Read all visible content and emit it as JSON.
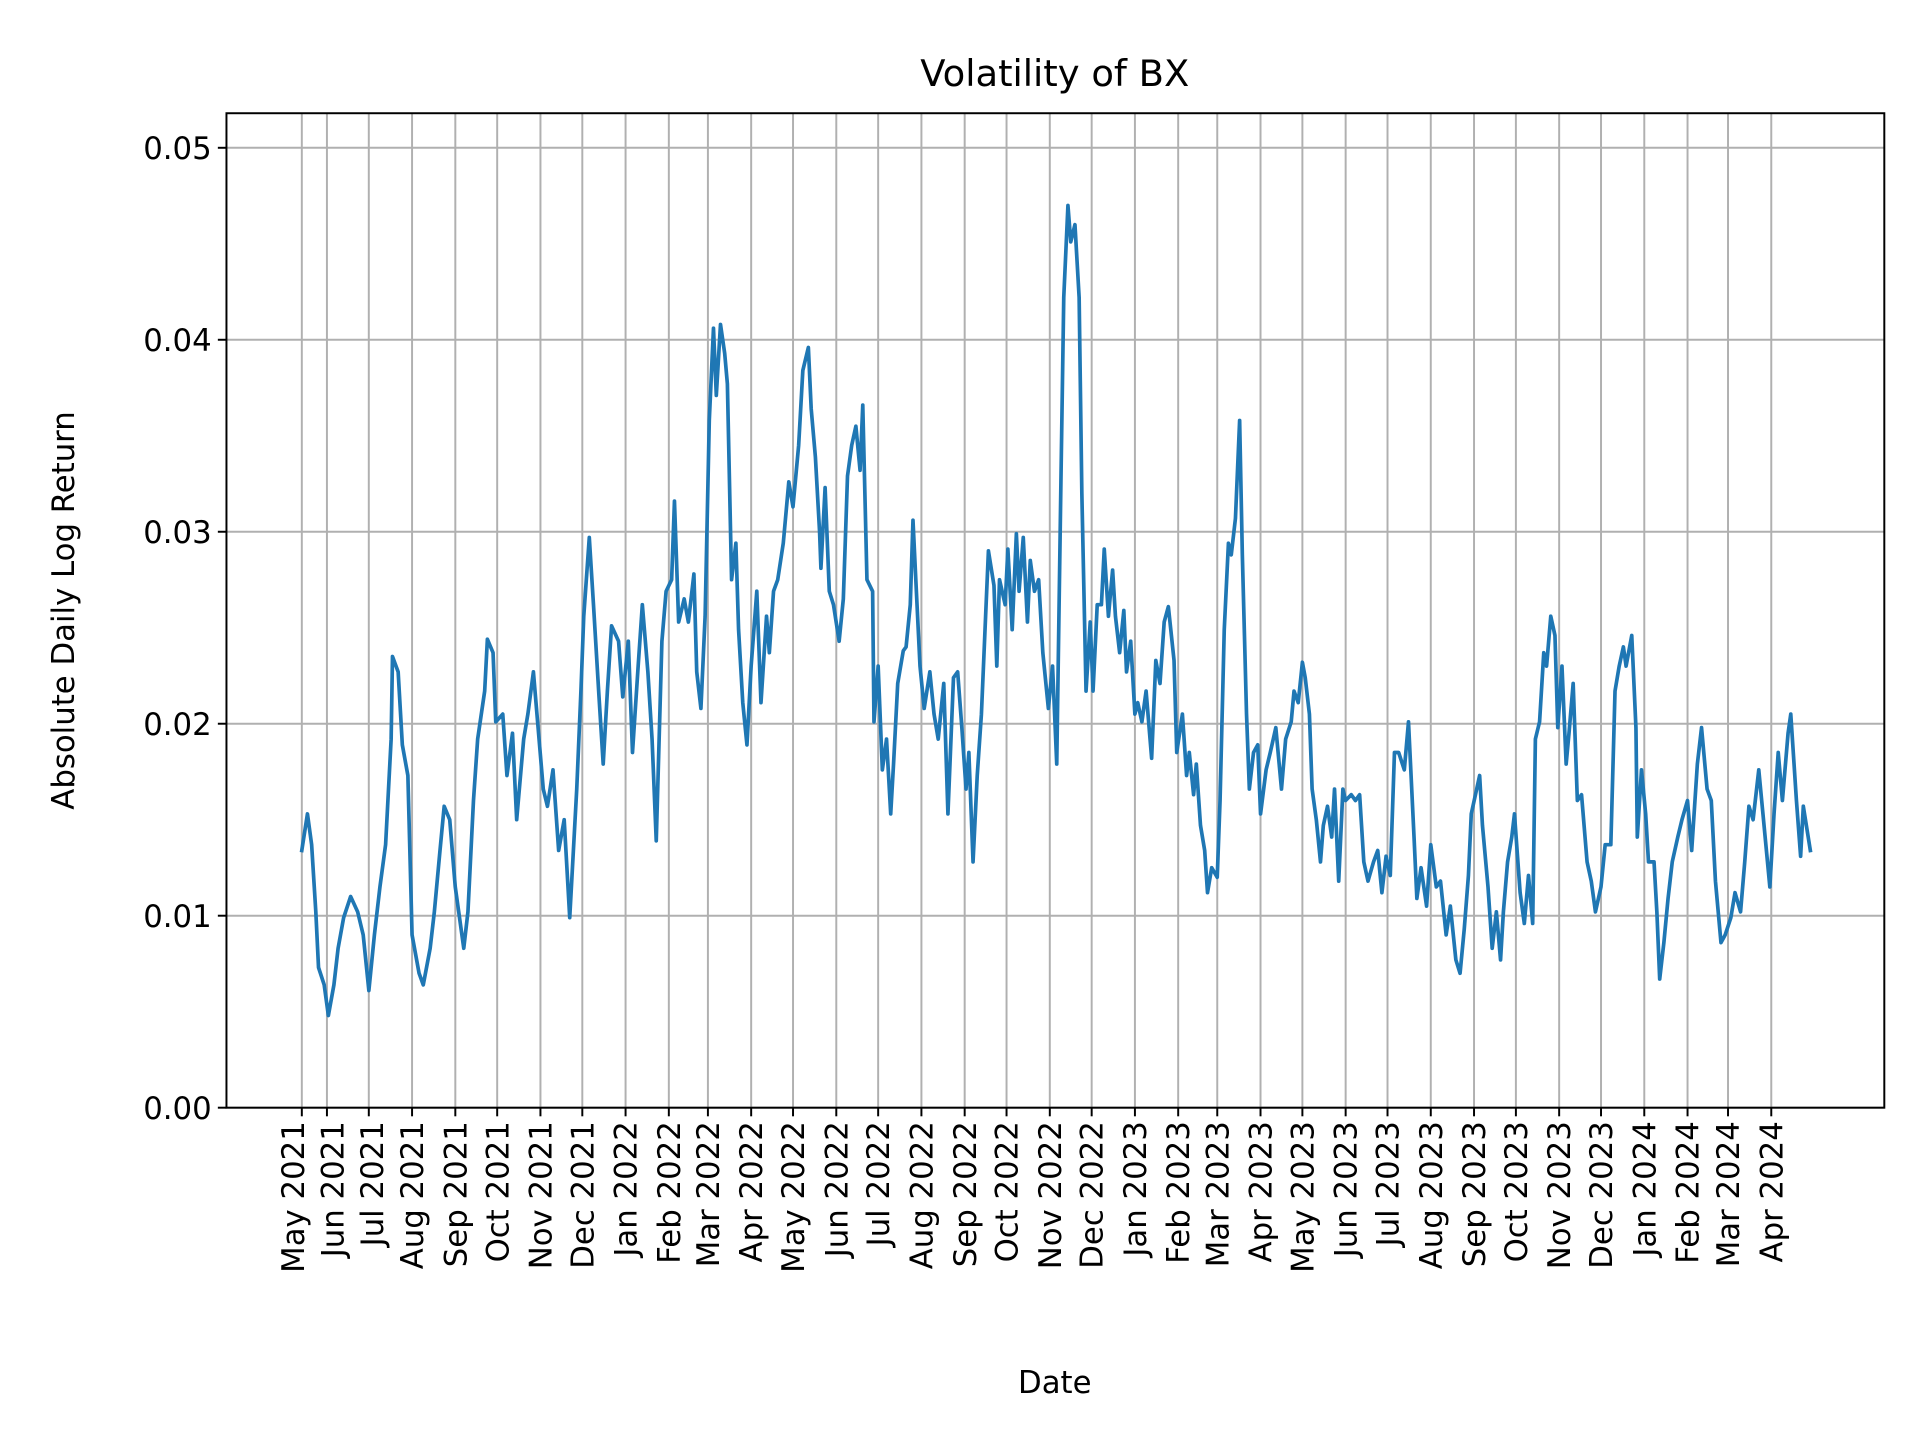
{
  "chart_data": {
    "type": "line",
    "title": "Volatility of BX",
    "xlabel": "Date",
    "ylabel": "Absolute Daily Log Return",
    "ylim": [
      0,
      0.0518
    ],
    "xlim": [
      "2021-03-21",
      "2024-06-21"
    ],
    "grid": true,
    "line_color": "#1f77b4",
    "grid_color": "#b0b0b0",
    "yticks": [
      {
        "value": 0.0,
        "label": "0.00"
      },
      {
        "value": 0.01,
        "label": "0.01"
      },
      {
        "value": 0.02,
        "label": "0.02"
      },
      {
        "value": 0.03,
        "label": "0.03"
      },
      {
        "value": 0.04,
        "label": "0.04"
      },
      {
        "value": 0.05,
        "label": "0.05"
      }
    ],
    "xticks": [
      {
        "date": "2021-05-14",
        "label": "May 2021"
      },
      {
        "date": "2021-06-01",
        "label": "Jun 2021"
      },
      {
        "date": "2021-07-01",
        "label": "Jul 2021"
      },
      {
        "date": "2021-08-01",
        "label": "Aug 2021"
      },
      {
        "date": "2021-09-01",
        "label": "Sep 2021"
      },
      {
        "date": "2021-10-01",
        "label": "Oct 2021"
      },
      {
        "date": "2021-11-01",
        "label": "Nov 2021"
      },
      {
        "date": "2021-12-01",
        "label": "Dec 2021"
      },
      {
        "date": "2022-01-01",
        "label": "Jan 2022"
      },
      {
        "date": "2022-02-01",
        "label": "Feb 2022"
      },
      {
        "date": "2022-03-01",
        "label": "Mar 2022"
      },
      {
        "date": "2022-04-01",
        "label": "Apr 2022"
      },
      {
        "date": "2022-05-01",
        "label": "May 2022"
      },
      {
        "date": "2022-06-01",
        "label": "Jun 2022"
      },
      {
        "date": "2022-07-01",
        "label": "Jul 2022"
      },
      {
        "date": "2022-08-01",
        "label": "Aug 2022"
      },
      {
        "date": "2022-09-01",
        "label": "Sep 2022"
      },
      {
        "date": "2022-10-01",
        "label": "Oct 2022"
      },
      {
        "date": "2022-11-01",
        "label": "Nov 2022"
      },
      {
        "date": "2022-12-01",
        "label": "Dec 2022"
      },
      {
        "date": "2023-01-01",
        "label": "Jan 2023"
      },
      {
        "date": "2023-02-01",
        "label": "Feb 2023"
      },
      {
        "date": "2023-03-01",
        "label": "Mar 2023"
      },
      {
        "date": "2023-04-01",
        "label": "Apr 2023"
      },
      {
        "date": "2023-05-01",
        "label": "May 2023"
      },
      {
        "date": "2023-06-01",
        "label": "Jun 2023"
      },
      {
        "date": "2023-07-01",
        "label": "Jul 2023"
      },
      {
        "date": "2023-08-01",
        "label": "Aug 2023"
      },
      {
        "date": "2023-09-01",
        "label": "Sep 2023"
      },
      {
        "date": "2023-10-01",
        "label": "Oct 2023"
      },
      {
        "date": "2023-11-01",
        "label": "Nov 2023"
      },
      {
        "date": "2023-12-01",
        "label": "Dec 2023"
      },
      {
        "date": "2024-01-01",
        "label": "Jan 2024"
      },
      {
        "date": "2024-02-01",
        "label": "Feb 2024"
      },
      {
        "date": "2024-03-01",
        "label": "Mar 2024"
      },
      {
        "date": "2024-04-01",
        "label": "Apr 2024"
      }
    ],
    "series": [
      {
        "x": [
          "2021-05-14",
          "2021-05-18",
          "2021-05-21",
          "2021-05-24",
          "2021-05-26",
          "2021-05-30",
          "2021-06-02",
          "2021-06-06",
          "2021-06-09",
          "2021-06-13",
          "2021-06-18",
          "2021-06-23",
          "2021-06-27",
          "2021-07-01",
          "2021-07-05",
          "2021-07-09",
          "2021-07-13",
          "2021-07-17",
          "2021-07-18",
          "2021-07-22",
          "2021-07-25",
          "2021-07-29",
          "2021-08-01",
          "2021-08-06",
          "2021-08-09",
          "2021-08-14",
          "2021-08-17",
          "2021-08-21",
          "2021-08-24",
          "2021-08-28",
          "2021-09-01",
          "2021-09-07",
          "2021-09-10",
          "2021-09-14",
          "2021-09-17",
          "2021-09-22",
          "2021-09-24",
          "2021-09-28",
          "2021-09-30",
          "2021-10-05",
          "2021-10-08",
          "2021-10-12",
          "2021-10-15",
          "2021-10-20",
          "2021-10-23",
          "2021-10-27",
          "2021-10-30",
          "2021-11-03",
          "2021-11-06",
          "2021-11-10",
          "2021-11-14",
          "2021-11-18",
          "2021-11-22",
          "2021-11-27",
          "2021-11-30",
          "2021-12-02",
          "2021-12-06",
          "2021-12-09",
          "2021-12-13",
          "2021-12-16",
          "2021-12-19",
          "2021-12-22",
          "2021-12-27",
          "2021-12-30",
          "2022-01-03",
          "2022-01-06",
          "2022-01-10",
          "2022-01-13",
          "2022-01-17",
          "2022-01-20",
          "2022-01-23",
          "2022-01-27",
          "2022-01-30",
          "2022-02-03",
          "2022-02-05",
          "2022-02-08",
          "2022-02-12",
          "2022-02-15",
          "2022-02-19",
          "2022-02-21",
          "2022-02-24",
          "2022-02-27",
          "2022-03-02",
          "2022-03-05",
          "2022-03-07",
          "2022-03-10",
          "2022-03-13",
          "2022-03-15",
          "2022-03-18",
          "2022-03-21",
          "2022-03-23",
          "2022-03-26",
          "2022-03-29",
          "2022-04-01",
          "2022-04-05",
          "2022-04-08",
          "2022-04-12",
          "2022-04-14",
          "2022-04-17",
          "2022-04-20",
          "2022-04-24",
          "2022-04-28",
          "2022-05-01",
          "2022-05-05",
          "2022-05-08",
          "2022-05-12",
          "2022-05-14",
          "2022-05-17",
          "2022-05-20",
          "2022-05-21",
          "2022-05-24",
          "2022-05-27",
          "2022-05-30",
          "2022-06-03",
          "2022-06-06",
          "2022-06-09",
          "2022-06-12",
          "2022-06-15",
          "2022-06-18",
          "2022-06-20",
          "2022-06-23",
          "2022-06-27",
          "2022-06-28",
          "2022-07-01",
          "2022-07-04",
          "2022-07-07",
          "2022-07-10",
          "2022-07-12",
          "2022-07-15",
          "2022-07-19",
          "2022-07-21",
          "2022-07-24",
          "2022-07-26",
          "2022-07-28",
          "2022-07-31",
          "2022-08-03",
          "2022-08-07",
          "2022-08-10",
          "2022-08-13",
          "2022-08-17",
          "2022-08-20",
          "2022-08-24",
          "2022-08-27",
          "2022-08-30",
          "2022-09-02",
          "2022-09-04",
          "2022-09-07",
          "2022-09-10",
          "2022-09-13",
          "2022-09-16",
          "2022-09-18",
          "2022-09-22",
          "2022-09-24",
          "2022-09-26",
          "2022-09-30",
          "2022-10-02",
          "2022-10-05",
          "2022-10-08",
          "2022-10-10",
          "2022-10-13",
          "2022-10-16",
          "2022-10-18",
          "2022-10-21",
          "2022-10-24",
          "2022-10-27",
          "2022-10-31",
          "2022-11-03",
          "2022-11-06",
          "2022-11-09",
          "2022-11-11",
          "2022-11-14",
          "2022-11-16",
          "2022-11-19",
          "2022-11-22",
          "2022-11-24",
          "2022-11-27",
          "2022-11-30",
          "2022-12-02",
          "2022-12-05",
          "2022-12-08",
          "2022-12-10",
          "2022-12-13",
          "2022-12-16",
          "2022-12-18",
          "2022-12-21",
          "2022-12-24",
          "2022-12-26",
          "2022-12-29",
          "2023-01-01",
          "2023-01-03",
          "2023-01-06",
          "2023-01-09",
          "2023-01-13",
          "2023-01-16",
          "2023-01-19",
          "2023-01-22",
          "2023-01-25",
          "2023-01-29",
          "2023-01-31",
          "2023-02-04",
          "2023-02-07",
          "2023-02-09",
          "2023-02-12",
          "2023-02-14",
          "2023-02-17",
          "2023-02-20",
          "2023-02-22",
          "2023-02-25",
          "2023-03-01",
          "2023-03-03",
          "2023-03-06",
          "2023-03-09",
          "2023-03-11",
          "2023-03-14",
          "2023-03-17",
          "2023-03-19",
          "2023-03-22",
          "2023-03-24",
          "2023-03-27",
          "2023-03-30",
          "2023-04-01",
          "2023-04-05",
          "2023-04-08",
          "2023-04-12",
          "2023-04-16",
          "2023-04-19",
          "2023-04-23",
          "2023-04-25",
          "2023-04-28",
          "2023-05-01",
          "2023-05-03",
          "2023-05-06",
          "2023-05-08",
          "2023-05-11",
          "2023-05-14",
          "2023-05-16",
          "2023-05-19",
          "2023-05-22",
          "2023-05-24",
          "2023-05-27",
          "2023-05-30",
          "2023-06-01",
          "2023-06-05",
          "2023-06-08",
          "2023-06-11",
          "2023-06-14",
          "2023-06-17",
          "2023-06-21",
          "2023-06-24",
          "2023-06-27",
          "2023-06-30",
          "2023-07-03",
          "2023-07-06",
          "2023-07-09",
          "2023-07-13",
          "2023-07-16",
          "2023-07-20",
          "2023-07-22",
          "2023-07-25",
          "2023-07-29",
          "2023-08-01",
          "2023-08-05",
          "2023-08-08",
          "2023-08-12",
          "2023-08-15",
          "2023-08-19",
          "2023-08-22",
          "2023-08-25",
          "2023-08-28",
          "2023-08-30",
          "2023-09-02",
          "2023-09-05",
          "2023-09-07",
          "2023-09-11",
          "2023-09-14",
          "2023-09-17",
          "2023-09-20",
          "2023-09-22",
          "2023-09-25",
          "2023-09-28",
          "2023-09-30",
          "2023-10-04",
          "2023-10-07",
          "2023-10-10",
          "2023-10-13",
          "2023-10-15",
          "2023-10-18",
          "2023-10-21",
          "2023-10-23",
          "2023-10-26",
          "2023-10-29",
          "2023-10-31",
          "2023-11-03",
          "2023-11-06",
          "2023-11-08",
          "2023-11-11",
          "2023-11-14",
          "2023-11-17",
          "2023-11-21",
          "2023-11-24",
          "2023-11-27",
          "2023-12-01",
          "2023-12-04",
          "2023-12-08",
          "2023-12-11",
          "2023-12-14",
          "2023-12-17",
          "2023-12-19",
          "2023-12-23",
          "2023-12-26",
          "2023-12-27",
          "2023-12-30",
          "2024-01-02",
          "2024-01-04",
          "2024-01-08",
          "2024-01-10",
          "2024-01-12",
          "2024-01-15",
          "2024-01-18",
          "2024-01-21",
          "2024-01-25",
          "2024-01-28",
          "2024-02-01",
          "2024-02-04",
          "2024-02-08",
          "2024-02-11",
          "2024-02-15",
          "2024-02-18",
          "2024-02-21",
          "2024-02-25",
          "2024-02-28",
          "2024-03-03",
          "2024-03-06",
          "2024-03-10",
          "2024-03-13",
          "2024-03-16",
          "2024-03-19",
          "2024-03-23",
          "2024-03-26",
          "2024-03-31",
          "2024-04-03",
          "2024-04-06",
          "2024-04-09",
          "2024-04-13",
          "2024-04-15",
          "2024-04-19",
          "2024-04-22",
          "2024-04-24",
          "2024-04-29"
        ],
        "y": [
          0.0134,
          0.0153,
          0.0137,
          0.0102,
          0.0073,
          0.0064,
          0.0048,
          0.0064,
          0.0083,
          0.0099,
          0.011,
          0.0102,
          0.009,
          0.0061,
          0.009,
          0.0115,
          0.0137,
          0.0192,
          0.0235,
          0.0227,
          0.0189,
          0.0173,
          0.009,
          0.007,
          0.0064,
          0.0083,
          0.0102,
          0.0134,
          0.0157,
          0.015,
          0.0115,
          0.0083,
          0.0102,
          0.016,
          0.0192,
          0.0217,
          0.0244,
          0.0237,
          0.0201,
          0.0205,
          0.0173,
          0.0195,
          0.015,
          0.0192,
          0.0205,
          0.0227,
          0.0201,
          0.0166,
          0.0157,
          0.0176,
          0.0134,
          0.015,
          0.0099,
          0.0166,
          0.0217,
          0.0256,
          0.0297,
          0.0262,
          0.0214,
          0.0179,
          0.0217,
          0.0251,
          0.0243,
          0.0214,
          0.0243,
          0.0185,
          0.023,
          0.0262,
          0.0227,
          0.0192,
          0.0139,
          0.0243,
          0.0269,
          0.0275,
          0.0316,
          0.0253,
          0.0265,
          0.0253,
          0.0278,
          0.0227,
          0.0208,
          0.0256,
          0.0358,
          0.0406,
          0.0371,
          0.0408,
          0.0393,
          0.0377,
          0.0275,
          0.0294,
          0.0249,
          0.0211,
          0.0189,
          0.023,
          0.0269,
          0.0211,
          0.0256,
          0.0237,
          0.0269,
          0.0275,
          0.0294,
          0.0326,
          0.0313,
          0.0345,
          0.0384,
          0.0396,
          0.0364,
          0.0339,
          0.03,
          0.0281,
          0.0323,
          0.0269,
          0.0262,
          0.0243,
          0.0265,
          0.0329,
          0.0345,
          0.0355,
          0.0332,
          0.0366,
          0.0275,
          0.0269,
          0.0201,
          0.023,
          0.0176,
          0.0192,
          0.0153,
          0.0179,
          0.0221,
          0.0238,
          0.024,
          0.0262,
          0.0306,
          0.0275,
          0.023,
          0.0208,
          0.0227,
          0.0205,
          0.0192,
          0.0221,
          0.0153,
          0.0224,
          0.0227,
          0.0198,
          0.0166,
          0.0185,
          0.0128,
          0.0173,
          0.0205,
          0.0256,
          0.029,
          0.0272,
          0.023,
          0.0275,
          0.0262,
          0.0291,
          0.0249,
          0.0299,
          0.0269,
          0.0297,
          0.0253,
          0.0285,
          0.0269,
          0.0275,
          0.0237,
          0.0208,
          0.023,
          0.0179,
          0.0326,
          0.0422,
          0.047,
          0.0451,
          0.046,
          0.0422,
          0.032,
          0.0217,
          0.0253,
          0.0217,
          0.0262,
          0.0262,
          0.0291,
          0.0256,
          0.028,
          0.0256,
          0.0237,
          0.0259,
          0.0227,
          0.0243,
          0.0205,
          0.0211,
          0.0201,
          0.0217,
          0.0182,
          0.0233,
          0.0221,
          0.0253,
          0.0261,
          0.0233,
          0.0185,
          0.0205,
          0.0173,
          0.0185,
          0.0163,
          0.0179,
          0.0147,
          0.0134,
          0.0112,
          0.0125,
          0.012,
          0.016,
          0.0249,
          0.0294,
          0.0288,
          0.0307,
          0.0358,
          0.0288,
          0.0205,
          0.0166,
          0.0185,
          0.0189,
          0.0153,
          0.0176,
          0.0185,
          0.0198,
          0.0166,
          0.0192,
          0.0201,
          0.0217,
          0.0211,
          0.0232,
          0.0224,
          0.0205,
          0.0166,
          0.015,
          0.0128,
          0.0147,
          0.0157,
          0.0141,
          0.0166,
          0.0118,
          0.0166,
          0.016,
          0.0163,
          0.016,
          0.0163,
          0.0128,
          0.0118,
          0.0128,
          0.0134,
          0.0112,
          0.0131,
          0.0121,
          0.0185,
          0.0185,
          0.0176,
          0.0201,
          0.0141,
          0.0109,
          0.0125,
          0.0105,
          0.0137,
          0.0115,
          0.0118,
          0.009,
          0.0105,
          0.0077,
          0.007,
          0.0093,
          0.0121,
          0.0153,
          0.0163,
          0.0173,
          0.0147,
          0.0115,
          0.0083,
          0.0102,
          0.0077,
          0.0102,
          0.0128,
          0.0141,
          0.0153,
          0.0112,
          0.0096,
          0.0121,
          0.0096,
          0.0192,
          0.0201,
          0.0237,
          0.023,
          0.0256,
          0.0246,
          0.0198,
          0.023,
          0.0179,
          0.0195,
          0.0221,
          0.016,
          0.0163,
          0.0128,
          0.0118,
          0.0102,
          0.0115,
          0.0137,
          0.0137,
          0.0217,
          0.023,
          0.024,
          0.023,
          0.0246,
          0.0198,
          0.0141,
          0.0176,
          0.0153,
          0.0128,
          0.0128,
          0.0102,
          0.0067,
          0.0086,
          0.0109,
          0.0128,
          0.0141,
          0.015,
          0.016,
          0.0134,
          0.0179,
          0.0198,
          0.0166,
          0.016,
          0.0118,
          0.0086,
          0.009,
          0.0099,
          0.0112,
          0.0102,
          0.0128,
          0.0157,
          0.015,
          0.0176,
          0.0153,
          0.0115,
          0.0153,
          0.0185,
          0.016,
          0.0195,
          0.0205,
          0.016,
          0.0131,
          0.0157,
          0.0134
        ]
      }
    ]
  }
}
